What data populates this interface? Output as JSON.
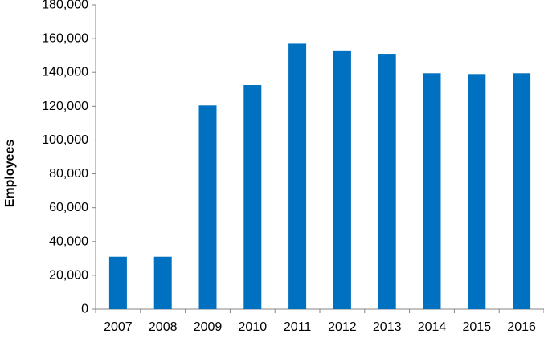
{
  "chart_data": {
    "type": "bar",
    "title": "",
    "xlabel": "",
    "ylabel": "Employees",
    "categories": [
      "2007",
      "2008",
      "2009",
      "2010",
      "2011",
      "2012",
      "2013",
      "2014",
      "2015",
      "2016"
    ],
    "values": [
      31000,
      31000,
      120500,
      132500,
      157000,
      153000,
      151000,
      139500,
      139000,
      139500
    ],
    "ylim": [
      0,
      180000
    ],
    "yticks": [
      0,
      20000,
      40000,
      60000,
      80000,
      100000,
      120000,
      140000,
      160000,
      180000
    ],
    "ytick_labels": [
      "0",
      "20,000",
      "40,000",
      "60,000",
      "80,000",
      "100,000",
      "120,000",
      "140,000",
      "160,000",
      "180,000"
    ],
    "grid": false,
    "legend": "none",
    "bar_color": "#0070C0",
    "axis_color": "#868686"
  }
}
